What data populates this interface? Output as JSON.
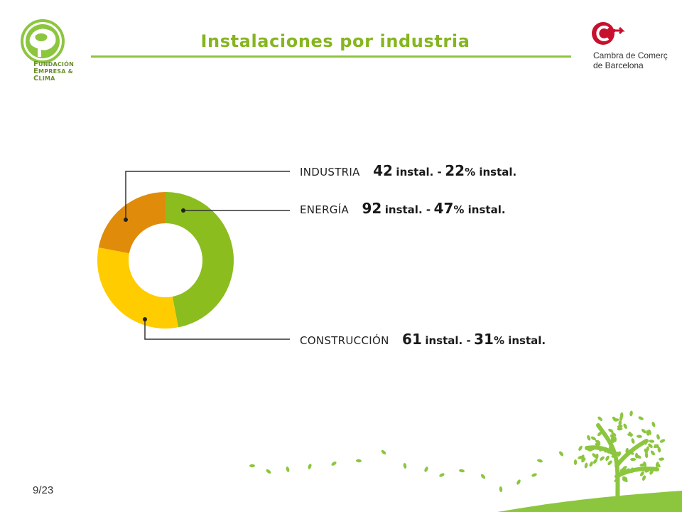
{
  "header": {
    "title": "Instalaciones por industria",
    "left_logo": {
      "icon": "tree-globe-icon",
      "line1_initial": "F",
      "line1_rest": "UNDACIÓN",
      "line2_initial": "E",
      "line2_rest": "MPRESA &",
      "line3_initial": "C",
      "line3_rest": "LIMA"
    },
    "right_logo": {
      "icon": "ccb-c-arrow-icon",
      "line1": "Cambra de Comerç",
      "line2": "de Barcelona"
    }
  },
  "colors": {
    "accent_green": "#8cc63f",
    "title_green": "#86b520",
    "energia": "#8bbd1e",
    "construccion": "#ffcc00",
    "industria": "#e08c0a",
    "ccb_red": "#c8102e"
  },
  "chart_data": {
    "type": "pie",
    "variant": "donut",
    "start_angle_deg": 0,
    "direction": "clockwise",
    "slices": [
      {
        "key": "energia",
        "label": "ENERGÍA",
        "count": "92",
        "count_unit": "instal. -",
        "pct": "47",
        "pct_suffix": "% instal.",
        "value": 47,
        "color": "#8bbd1e"
      },
      {
        "key": "construccion",
        "label": "CONSTRUCCIÓN",
        "count": "61",
        "count_unit": "instal. -",
        "pct": "31",
        "pct_suffix": "% instal.",
        "value": 31,
        "color": "#ffcc00"
      },
      {
        "key": "industria",
        "label": "INDUSTRIA",
        "count": "42",
        "count_unit": "instal. -",
        "pct": "22",
        "pct_suffix": "% instal.",
        "value": 22,
        "color": "#e08c0a"
      }
    ]
  },
  "footer": {
    "page": "9/23",
    "decoration": "tree-leaves-icon"
  }
}
